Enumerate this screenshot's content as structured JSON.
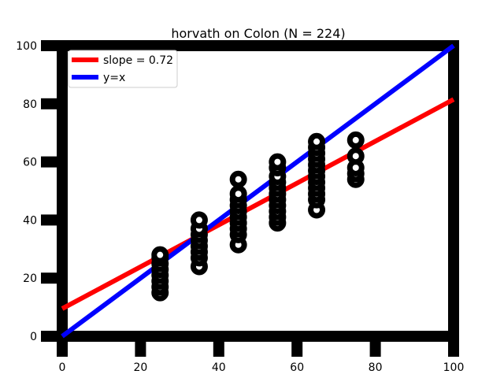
{
  "chart_data": {
    "type": "scatter",
    "title": "horvath on Colon (N = 224)",
    "xlabel": "",
    "ylabel": "",
    "xlim": [
      0,
      100
    ],
    "ylim": [
      0,
      100
    ],
    "x_ticks": [
      "0",
      "20",
      "40",
      "60",
      "80",
      "100"
    ],
    "y_ticks": [
      "0",
      "20",
      "40",
      "60",
      "80",
      "100"
    ],
    "grid": false,
    "legend_position": "top-left",
    "points": [
      {
        "x": 25,
        "y": 15
      },
      {
        "x": 25,
        "y": 17
      },
      {
        "x": 25,
        "y": 19
      },
      {
        "x": 25,
        "y": 21
      },
      {
        "x": 25,
        "y": 23
      },
      {
        "x": 25,
        "y": 25
      },
      {
        "x": 25,
        "y": 27
      },
      {
        "x": 25,
        "y": 28
      },
      {
        "x": 35,
        "y": 24
      },
      {
        "x": 35,
        "y": 27
      },
      {
        "x": 35,
        "y": 29
      },
      {
        "x": 35,
        "y": 31
      },
      {
        "x": 35,
        "y": 33
      },
      {
        "x": 35,
        "y": 35
      },
      {
        "x": 35,
        "y": 37
      },
      {
        "x": 35,
        "y": 40
      },
      {
        "x": 45,
        "y": 31.5
      },
      {
        "x": 45,
        "y": 35
      },
      {
        "x": 45,
        "y": 37
      },
      {
        "x": 45,
        "y": 39
      },
      {
        "x": 45,
        "y": 41
      },
      {
        "x": 45,
        "y": 43
      },
      {
        "x": 45,
        "y": 45
      },
      {
        "x": 45,
        "y": 47
      },
      {
        "x": 45,
        "y": 49
      },
      {
        "x": 45,
        "y": 54
      },
      {
        "x": 55,
        "y": 39
      },
      {
        "x": 55,
        "y": 41
      },
      {
        "x": 55,
        "y": 43
      },
      {
        "x": 55,
        "y": 45
      },
      {
        "x": 55,
        "y": 47
      },
      {
        "x": 55,
        "y": 49
      },
      {
        "x": 55,
        "y": 51
      },
      {
        "x": 55,
        "y": 53
      },
      {
        "x": 55,
        "y": 55
      },
      {
        "x": 55,
        "y": 58
      },
      {
        "x": 55,
        "y": 60
      },
      {
        "x": 65,
        "y": 43.5
      },
      {
        "x": 65,
        "y": 47
      },
      {
        "x": 65,
        "y": 49
      },
      {
        "x": 65,
        "y": 51
      },
      {
        "x": 65,
        "y": 53
      },
      {
        "x": 65,
        "y": 55
      },
      {
        "x": 65,
        "y": 57
      },
      {
        "x": 65,
        "y": 59
      },
      {
        "x": 65,
        "y": 61
      },
      {
        "x": 65,
        "y": 63
      },
      {
        "x": 65,
        "y": 65
      },
      {
        "x": 65,
        "y": 67
      },
      {
        "x": 75,
        "y": 54
      },
      {
        "x": 75,
        "y": 56
      },
      {
        "x": 75,
        "y": 58
      },
      {
        "x": 75,
        "y": 62
      },
      {
        "x": 75,
        "y": 67.5
      }
    ],
    "series": [
      {
        "name": "slope = 0.72",
        "color": "#ff0000",
        "slope": 0.72,
        "intercept": 9.5
      },
      {
        "name": "y=x",
        "color": "#0000ff",
        "slope": 1,
        "intercept": 0
      }
    ],
    "marker_color": "#000000"
  }
}
